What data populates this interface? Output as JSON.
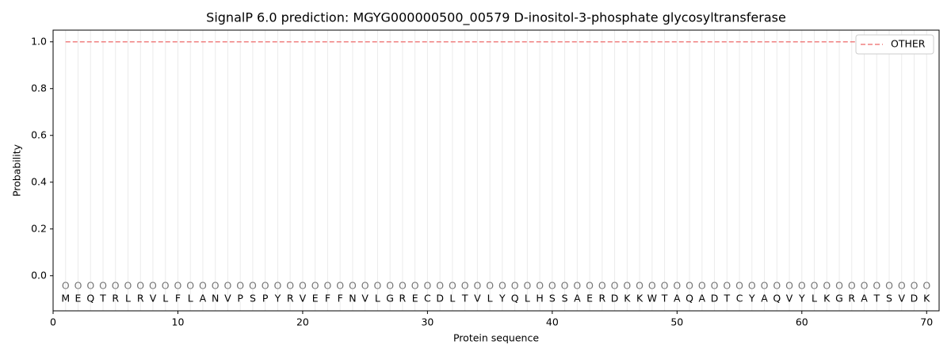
{
  "chart_data": {
    "type": "line",
    "title": "SignalP 6.0 prediction: MGYG000000500_00579 D-inositol-3-phosphate glycosyltransferase",
    "x_label": "Protein sequence",
    "y_label": "Probability",
    "x": [
      1,
      2,
      3,
      4,
      5,
      6,
      7,
      8,
      9,
      10,
      11,
      12,
      13,
      14,
      15,
      16,
      17,
      18,
      19,
      20,
      21,
      22,
      23,
      24,
      25,
      26,
      27,
      28,
      29,
      30,
      31,
      32,
      33,
      34,
      35,
      36,
      37,
      38,
      39,
      40,
      41,
      42,
      43,
      44,
      45,
      46,
      47,
      48,
      49,
      50,
      51,
      52,
      53,
      54,
      55,
      56,
      57,
      58,
      59,
      60,
      61,
      62,
      63,
      64,
      65,
      66,
      67,
      68,
      69,
      70
    ],
    "residues": [
      "M",
      "E",
      "Q",
      "T",
      "R",
      "L",
      "R",
      "V",
      "L",
      "F",
      "L",
      "A",
      "N",
      "V",
      "P",
      "S",
      "P",
      "Y",
      "R",
      "V",
      "E",
      "F",
      "F",
      "N",
      "V",
      "L",
      "G",
      "R",
      "E",
      "C",
      "D",
      "L",
      "T",
      "V",
      "L",
      "Y",
      "Q",
      "L",
      "H",
      "S",
      "S",
      "A",
      "E",
      "R",
      "D",
      "K",
      "K",
      "W",
      "T",
      "A",
      "Q",
      "A",
      "D",
      "T",
      "C",
      "Y",
      "A",
      "Q",
      "V",
      "Y",
      "L",
      "K",
      "G",
      "R",
      "A",
      "T",
      "S",
      "V",
      "D",
      "K"
    ],
    "position_labels": [
      "O",
      "O",
      "O",
      "O",
      "O",
      "O",
      "O",
      "O",
      "O",
      "O",
      "O",
      "O",
      "O",
      "O",
      "O",
      "O",
      "O",
      "O",
      "O",
      "O",
      "O",
      "O",
      "O",
      "O",
      "O",
      "O",
      "O",
      "O",
      "O",
      "O",
      "O",
      "O",
      "O",
      "O",
      "O",
      "O",
      "O",
      "O",
      "O",
      "O",
      "O",
      "O",
      "O",
      "O",
      "O",
      "O",
      "O",
      "O",
      "O",
      "O",
      "O",
      "O",
      "O",
      "O",
      "O",
      "O",
      "O",
      "O",
      "O",
      "O",
      "O",
      "O",
      "O",
      "O",
      "O",
      "O",
      "O",
      "O",
      "O",
      "O"
    ],
    "series": [
      {
        "name": "OTHER",
        "color": "#f08080",
        "dashed": true,
        "values": [
          1,
          1,
          1,
          1,
          1,
          1,
          1,
          1,
          1,
          1,
          1,
          1,
          1,
          1,
          1,
          1,
          1,
          1,
          1,
          1,
          1,
          1,
          1,
          1,
          1,
          1,
          1,
          1,
          1,
          1,
          1,
          1,
          1,
          1,
          1,
          1,
          1,
          1,
          1,
          1,
          1,
          1,
          1,
          1,
          1,
          1,
          1,
          1,
          1,
          1,
          1,
          1,
          1,
          1,
          1,
          1,
          1,
          1,
          1,
          1,
          1,
          1,
          1,
          1,
          1,
          1,
          1,
          1,
          1,
          1
        ]
      }
    ],
    "xlim": [
      0,
      71
    ],
    "ylim": [
      -0.15,
      1.05
    ],
    "xticks": [
      0,
      10,
      20,
      30,
      40,
      50,
      60,
      70
    ],
    "yticks": [
      {
        "value": 0,
        "label": "0.0"
      },
      {
        "value": 0.2,
        "label": "0.2"
      },
      {
        "value": 0.4,
        "label": "0.4"
      },
      {
        "value": 0.6,
        "label": "0.6"
      },
      {
        "value": 0.8,
        "label": "0.8"
      },
      {
        "value": 1,
        "label": "1.0"
      }
    ],
    "legend": "upper right"
  }
}
